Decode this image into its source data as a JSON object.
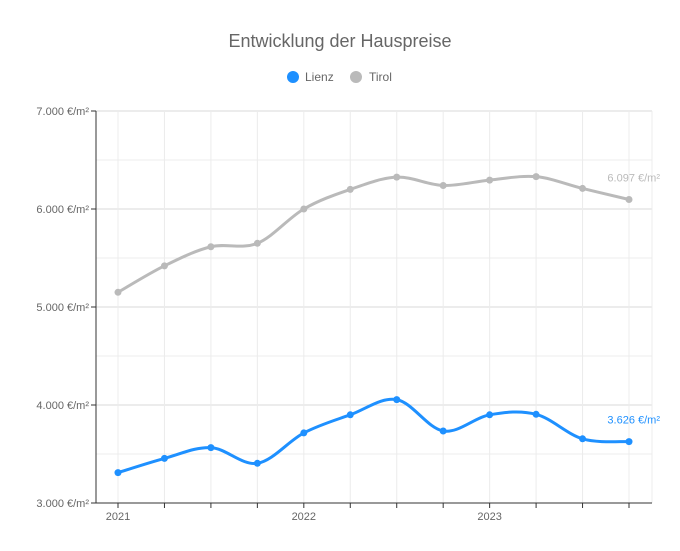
{
  "chart_data": {
    "type": "line",
    "title": "Entwicklung der Hauspreise",
    "x": [
      "2021-Q1",
      "2021-Q2",
      "2021-Q3",
      "2021-Q4",
      "2022-Q1",
      "2022-Q2",
      "2022-Q3",
      "2022-Q4",
      "2023-Q1",
      "2023-Q2",
      "2023-Q3",
      "2023-Q4"
    ],
    "x_tick_labels": [
      "2021",
      "2022",
      "2023"
    ],
    "y_tick_labels": [
      "3.000 €/m²",
      "4.000 €/m²",
      "5.000 €/m²",
      "6.000 €/m²",
      "7.000 €/m²"
    ],
    "ylim": [
      3000,
      7000
    ],
    "y_ticks": [
      3000,
      4000,
      5000,
      6000,
      7000
    ],
    "xlabel": "",
    "ylabel": "",
    "legend_position": "top-center",
    "grid": true,
    "series": [
      {
        "name": "Lienz",
        "color": "#1e90ff",
        "values": [
          3310,
          3455,
          3565,
          3405,
          3715,
          3900,
          4055,
          3735,
          3900,
          3905,
          3655,
          3626
        ],
        "end_label": "3.626 €/m²"
      },
      {
        "name": "Tirol",
        "color": "#bababa",
        "values": [
          5150,
          5420,
          5615,
          5650,
          6000,
          6200,
          6325,
          6240,
          6295,
          6330,
          6210,
          6097
        ],
        "end_label": "6.097 €/m²"
      }
    ]
  }
}
